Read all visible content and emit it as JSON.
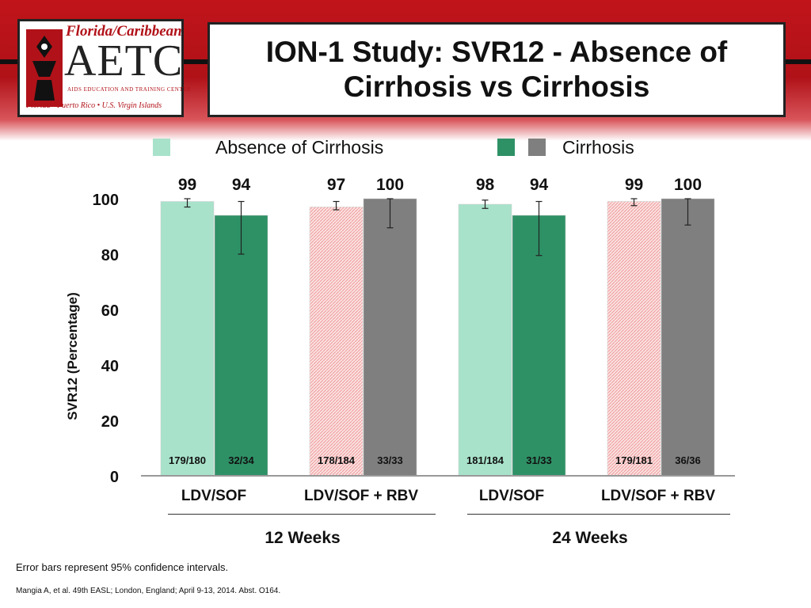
{
  "header": {
    "title": "ION-1 Study: SVR12 - Absence of\nCirrhosis vs Cirrhosis",
    "logo": {
      "top_text": "Florida/Caribbean",
      "main_text": "AETC",
      "sub_text": "AIDS EDUCATION AND TRAINING CENTER",
      "bottom_text": "Florida • Puerto Rico • U.S. Virgin Islands"
    }
  },
  "legend": {
    "absence_label": "Absence of Cirrhosis",
    "cirrhosis_label": "Cirrhosis"
  },
  "colors": {
    "banner_red": "#c0141a",
    "absence_ldvsof": "#a8e2cb",
    "cirrhosis_ldvsof": "#2e9166",
    "absence_rbv": "#f4c6c6",
    "cirrhosis_rbv": "#7f7f7f"
  },
  "chart_data": {
    "type": "bar",
    "ylabel": "SVR12 (Percentage)",
    "ylim": [
      0,
      100
    ],
    "yticks": [
      "0",
      "20",
      "40",
      "60",
      "80",
      "100"
    ],
    "grid": false,
    "categories": [
      "LDV/SOF",
      "LDV/SOF + RBV",
      "LDV/SOF",
      "LDV/SOF + RBV"
    ],
    "week_groups": [
      {
        "label": "12 Weeks",
        "categories": [
          0,
          1
        ]
      },
      {
        "label": "24 Weeks",
        "categories": [
          2,
          3
        ]
      }
    ],
    "series": [
      {
        "name": "Absence of Cirrhosis",
        "values": [
          99,
          97,
          98,
          99
        ],
        "value_labels": [
          "99",
          "97",
          "98",
          "99"
        ],
        "counts": [
          "179/180",
          "178/184",
          "181/184",
          "179/181"
        ],
        "ci_low": [
          97,
          96,
          96.5,
          97.5
        ],
        "ci_high": [
          100,
          99,
          99.5,
          100
        ]
      },
      {
        "name": "Cirrhosis",
        "values": [
          94,
          100,
          94,
          100
        ],
        "value_labels": [
          "94",
          "100",
          "94",
          "100"
        ],
        "counts": [
          "32/34",
          "33/33",
          "31/33",
          "36/36"
        ],
        "ci_low": [
          80,
          89.5,
          79.5,
          90.5
        ],
        "ci_high": [
          99,
          100,
          99,
          100
        ]
      }
    ]
  },
  "footer": {
    "note": "Error bars represent 95% confidence intervals.",
    "citation": "Mangia A, et al. 49th EASL; London, England; April 9-13, 2014. Abst. O164."
  }
}
